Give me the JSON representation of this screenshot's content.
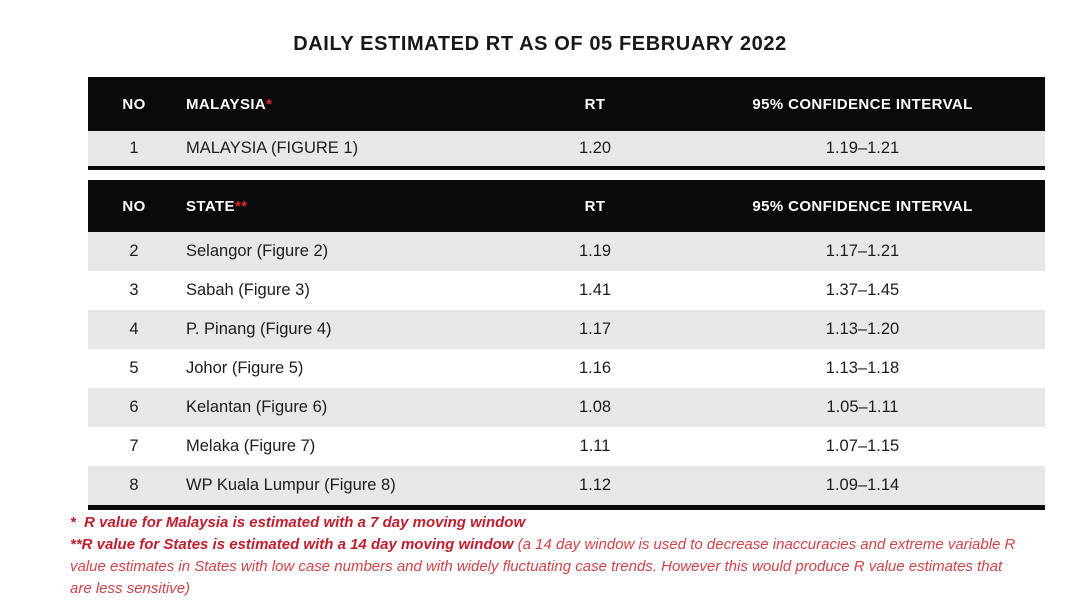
{
  "title": "DAILY ESTIMATED RT AS OF 05 FEBRUARY 2022",
  "colors": {
    "header_bg": "#0a0a0a",
    "header_text": "#ffffff",
    "stripe_row_bg": "#e7e7e7",
    "marker_red": "#e2272c",
    "footnote_bold_red": "#be1e2d",
    "footnote_regular_red": "#cf4348"
  },
  "table_malaysia": {
    "headers": {
      "no": "NO",
      "name": "MALAYSIA",
      "name_marker": "*",
      "rt": "RT",
      "ci": "95% CONFIDENCE INTERVAL"
    },
    "rows": [
      {
        "no": "1",
        "name": "MALAYSIA (FIGURE 1)",
        "rt": "1.20",
        "ci": "1.19–1.21"
      }
    ]
  },
  "table_states": {
    "headers": {
      "no": "NO",
      "name": "STATE",
      "name_marker": "**",
      "rt": "RT",
      "ci": "95% CONFIDENCE INTERVAL"
    },
    "rows": [
      {
        "no": "2",
        "name": "Selangor (Figure 2)",
        "rt": "1.19",
        "ci": "1.17–1.21"
      },
      {
        "no": "3",
        "name": "Sabah (Figure 3)",
        "rt": "1.41",
        "ci": "1.37–1.45"
      },
      {
        "no": "4",
        "name": "P. Pinang (Figure 4)",
        "rt": "1.17",
        "ci": "1.13–1.20"
      },
      {
        "no": "5",
        "name": "Johor (Figure 5)",
        "rt": "1.16",
        "ci": "1.13–1.18"
      },
      {
        "no": "6",
        "name": "Kelantan (Figure 6)",
        "rt": "1.08",
        "ci": "1.05–1.11"
      },
      {
        "no": "7",
        "name": "Melaka (Figure 7)",
        "rt": "1.11",
        "ci": "1.07–1.15"
      },
      {
        "no": "8",
        "name": "WP Kuala Lumpur (Figure 8)",
        "rt": "1.12",
        "ci": "1.09–1.14"
      }
    ]
  },
  "footnotes": {
    "line1": "*  R value for Malaysia is estimated with a 7 day moving window",
    "line2_bold": "**R value for States is estimated with a 14 day moving window ",
    "line2_regular": "(a 14 day window is used to decrease inaccuracies and extreme variable R value estimates in States with low case numbers and with widely fluctuating case trends. However this would produce R value estimates that are less sensitive)"
  }
}
